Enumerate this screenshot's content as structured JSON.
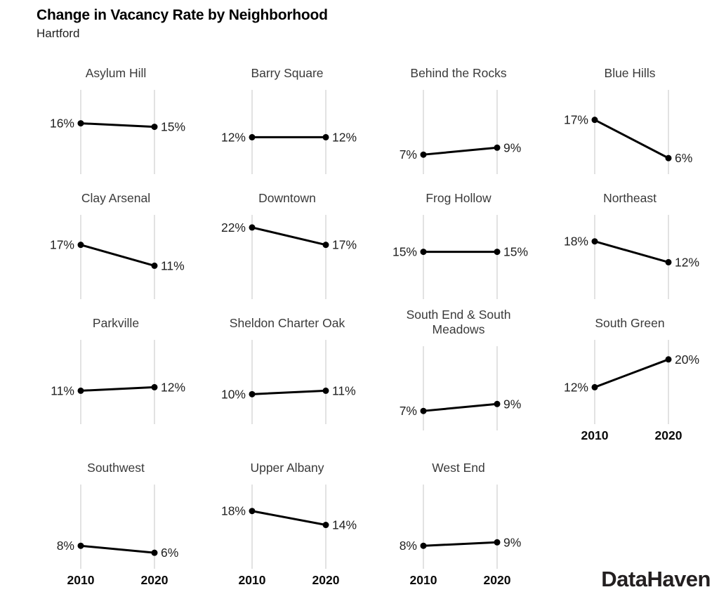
{
  "header": {
    "title": "Change in Vacancy Rate by Neighborhood",
    "subtitle": "Hartford"
  },
  "footer": {
    "brand": "DataHaven"
  },
  "colors": {
    "line": "#000000",
    "point": "#000000",
    "gridline": "#e2e2e2",
    "value_label": "#1f1f1f",
    "panel_title": "#3a3a3a",
    "axis_label": "#0a0a0a",
    "background": "#ffffff"
  },
  "chart_data": {
    "type": "line",
    "subtype": "slope-small-multiples",
    "title": "Change in Vacancy Rate by Neighborhood",
    "subtitle": "Hartford",
    "unit": "%",
    "x": [
      "2010",
      "2020"
    ],
    "xlabel": "",
    "ylabel": "",
    "ylim": [
      3,
      24
    ],
    "grid": "x-gridlines-only",
    "legend": "none",
    "panels": [
      {
        "name": "Asylum Hill",
        "values": [
          16,
          15
        ],
        "labels": [
          "16%",
          "15%"
        ],
        "show_x_axis": false
      },
      {
        "name": "Barry Square",
        "values": [
          12,
          12
        ],
        "labels": [
          "12%",
          "12%"
        ],
        "show_x_axis": false
      },
      {
        "name": "Behind the Rocks",
        "values": [
          7,
          9
        ],
        "labels": [
          "7%",
          "9%"
        ],
        "show_x_axis": false
      },
      {
        "name": "Blue Hills",
        "values": [
          17,
          6
        ],
        "labels": [
          "17%",
          "6%"
        ],
        "show_x_axis": false
      },
      {
        "name": "Clay Arsenal",
        "values": [
          17,
          11
        ],
        "labels": [
          "17%",
          "11%"
        ],
        "show_x_axis": false
      },
      {
        "name": "Downtown",
        "values": [
          22,
          17
        ],
        "labels": [
          "22%",
          "17%"
        ],
        "show_x_axis": false
      },
      {
        "name": "Frog Hollow",
        "values": [
          15,
          15
        ],
        "labels": [
          "15%",
          "15%"
        ],
        "show_x_axis": false
      },
      {
        "name": "Northeast",
        "values": [
          18,
          12
        ],
        "labels": [
          "18%",
          "12%"
        ],
        "show_x_axis": false
      },
      {
        "name": "Parkville",
        "values": [
          11,
          12
        ],
        "labels": [
          "11%",
          "12%"
        ],
        "show_x_axis": false
      },
      {
        "name": "Sheldon Charter Oak",
        "values": [
          10,
          11
        ],
        "labels": [
          "10%",
          "11%"
        ],
        "show_x_axis": false
      },
      {
        "name": "South End & South Meadows",
        "values": [
          7,
          9
        ],
        "labels": [
          "7%",
          "9%"
        ],
        "show_x_axis": false
      },
      {
        "name": "South Green",
        "values": [
          12,
          20
        ],
        "labels": [
          "12%",
          "20%"
        ],
        "show_x_axis": true
      },
      {
        "name": "Southwest",
        "values": [
          8,
          6
        ],
        "labels": [
          "8%",
          "6%"
        ],
        "show_x_axis": true
      },
      {
        "name": "Upper Albany",
        "values": [
          18,
          14
        ],
        "labels": [
          "18%",
          "14%"
        ],
        "show_x_axis": true
      },
      {
        "name": "West End",
        "values": [
          8,
          9
        ],
        "labels": [
          "8%",
          "9%"
        ],
        "show_x_axis": true
      }
    ]
  }
}
